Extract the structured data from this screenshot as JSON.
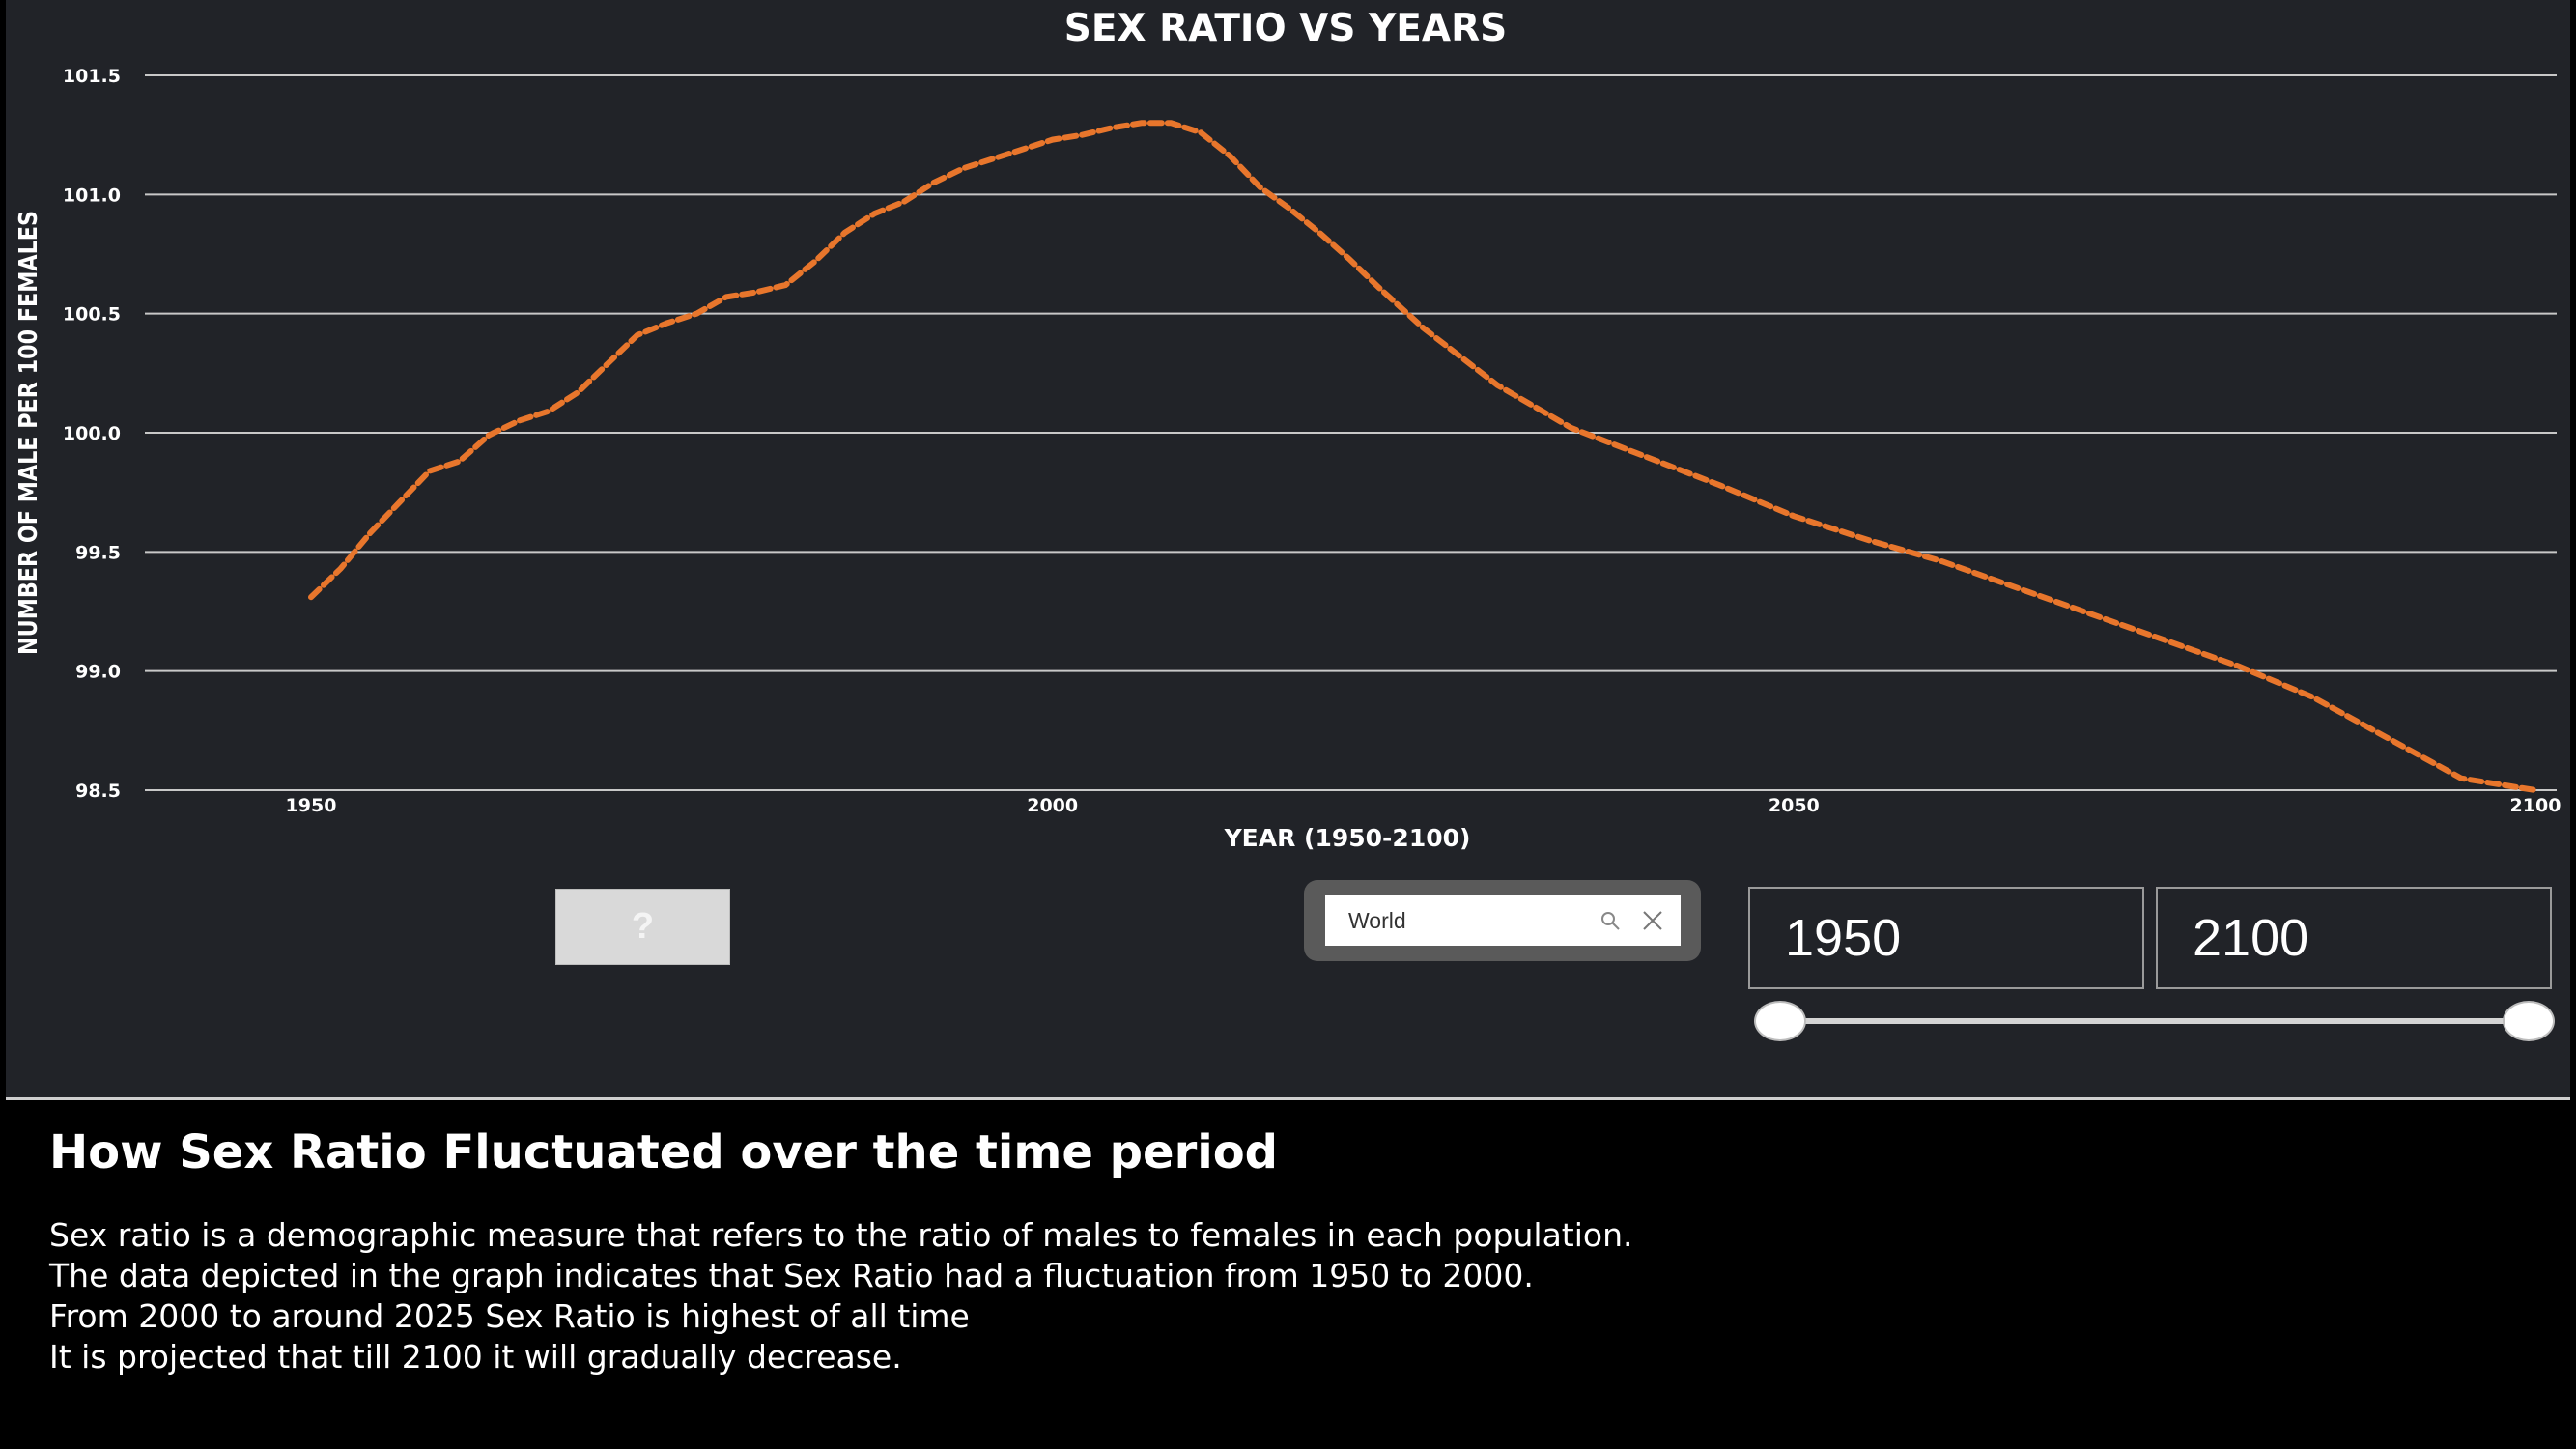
{
  "chart_data": {
    "type": "line",
    "title": "SEX RATIO VS YEARS",
    "xlabel": "YEAR (1950-2100)",
    "ylabel": "NUMBER OF MALE PER 100 FEMALES",
    "xlim": [
      1950,
      2100
    ],
    "ylim": [
      98.5,
      101.5
    ],
    "x_ticks": [
      "1950",
      "2000",
      "2050",
      "2100"
    ],
    "y_ticks": [
      "101.5",
      "101.0",
      "100.5",
      "100.0",
      "99.5",
      "99.0",
      "98.5"
    ],
    "grid": true,
    "line_color": "#e8762c",
    "line_style": "dashed",
    "x": [
      1950,
      1952,
      1954,
      1956,
      1958,
      1960,
      1962,
      1964,
      1966,
      1968,
      1970,
      1972,
      1974,
      1976,
      1978,
      1980,
      1982,
      1984,
      1986,
      1988,
      1990,
      1992,
      1994,
      1996,
      1998,
      2000,
      2002,
      2004,
      2006,
      2008,
      2010,
      2012,
      2014,
      2016,
      2018,
      2020,
      2022,
      2025,
      2030,
      2035,
      2040,
      2045,
      2050,
      2055,
      2060,
      2065,
      2070,
      2075,
      2080,
      2085,
      2090,
      2095,
      2100
    ],
    "y": [
      99.31,
      99.43,
      99.58,
      99.71,
      99.84,
      99.88,
      99.99,
      100.05,
      100.09,
      100.17,
      100.29,
      100.41,
      100.46,
      100.5,
      100.57,
      100.59,
      100.62,
      100.72,
      100.84,
      100.92,
      100.97,
      101.05,
      101.11,
      101.15,
      101.19,
      101.23,
      101.25,
      101.28,
      101.3,
      101.3,
      101.26,
      101.16,
      101.03,
      100.94,
      100.84,
      100.73,
      100.61,
      100.44,
      100.2,
      100.02,
      99.9,
      99.78,
      99.65,
      99.55,
      99.46,
      99.35,
      99.24,
      99.13,
      99.02,
      98.89,
      98.72,
      98.55,
      98.5
    ]
  },
  "controls": {
    "help_button_label": "?",
    "search": {
      "value": "World",
      "icon": "search-icon",
      "clear_icon": "close-icon"
    },
    "range": {
      "start": "1950",
      "end": "2100",
      "start_value": 1950,
      "end_value": 2100
    }
  },
  "description": {
    "heading": "How Sex Ratio Fluctuated over the time period",
    "lines": [
      "Sex ratio is a demographic measure that refers to the ratio of males to females in each population.",
      "The data depicted in the graph indicates that Sex Ratio had a fluctuation from 1950 to 2000.",
      "From 2000 to around 2025 Sex Ratio is highest of all time",
      "It is projected that till 2100 it will gradually decrease."
    ]
  },
  "colors": {
    "background": "#212328",
    "page": "#000000",
    "accent": "#e8762c",
    "gridline": "#c8c8c8"
  }
}
